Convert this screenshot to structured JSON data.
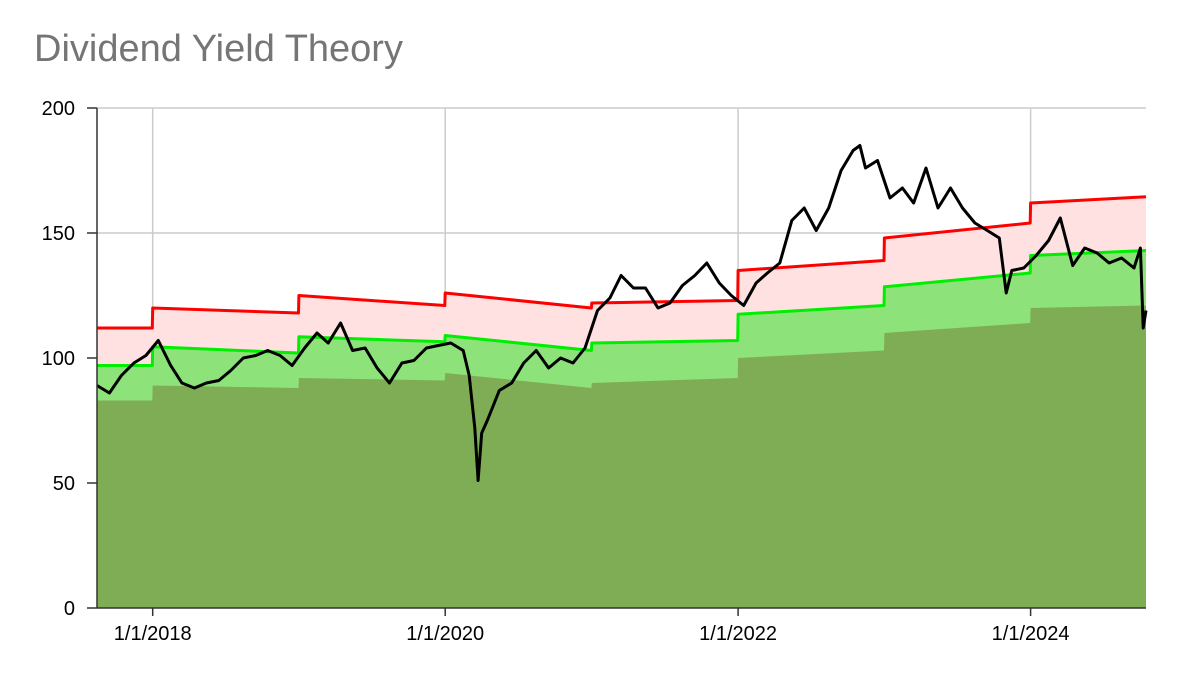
{
  "chart_data": {
    "type": "area",
    "title": "Dividend Yield Theory",
    "xlabel": "",
    "ylabel": "",
    "x_range": [
      "2017-08-15",
      "2024-10-15"
    ],
    "ylim": [
      0,
      200
    ],
    "grid": true,
    "legend": "none",
    "y_ticks": [
      "0",
      "50",
      "100",
      "150",
      "200"
    ],
    "x_ticks": [
      {
        "date": "2018-01-01",
        "label": "1/1/2018"
      },
      {
        "date": "2020-01-01",
        "label": "1/1/2020"
      },
      {
        "date": "2022-01-01",
        "label": "1/1/2022"
      },
      {
        "date": "2024-01-01",
        "label": "1/1/2024"
      }
    ],
    "colors": {
      "undervalued_line": "#ff0000",
      "undervalued_fill": "#ffe1e1",
      "fair_line": "#00ee00",
      "fair_fill": "#8ee27a",
      "overvalued_fill": "#7fad55",
      "price_line": "#000000",
      "grid": "#cccccc",
      "title": "#757575"
    },
    "series": [
      {
        "key": "overvalued",
        "x": [
          "2017-08-15",
          "2017-12-31",
          "2018-01-01",
          "2018-12-31",
          "2019-01-01",
          "2019-12-31",
          "2020-01-01",
          "2020-12-31",
          "2021-01-01",
          "2021-12-31",
          "2022-01-01",
          "2022-12-31",
          "2023-01-01",
          "2023-12-31",
          "2024-01-01",
          "2024-10-15"
        ],
        "values": [
          83,
          83,
          89,
          88,
          92,
          91,
          94,
          88,
          90,
          92,
          100,
          103,
          110,
          114,
          120,
          121
        ]
      },
      {
        "key": "fair",
        "x": [
          "2017-08-15",
          "2017-12-31",
          "2018-01-01",
          "2018-12-31",
          "2019-01-01",
          "2019-12-31",
          "2020-01-01",
          "2020-12-31",
          "2021-01-01",
          "2021-12-31",
          "2022-01-01",
          "2022-12-31",
          "2023-01-01",
          "2023-12-31",
          "2024-01-01",
          "2024-10-15"
        ],
        "values": [
          97,
          97,
          104.5,
          102,
          108.5,
          106.5,
          109,
          103,
          106,
          107,
          117.5,
          121,
          128.5,
          134,
          141,
          143
        ]
      },
      {
        "key": "undervalued",
        "x": [
          "2017-08-15",
          "2017-12-31",
          "2018-01-01",
          "2018-12-31",
          "2019-01-01",
          "2019-12-31",
          "2020-01-01",
          "2020-12-31",
          "2021-01-01",
          "2021-12-31",
          "2022-01-01",
          "2022-12-31",
          "2023-01-01",
          "2023-12-31",
          "2024-01-01",
          "2024-10-15"
        ],
        "values": [
          112,
          112,
          120,
          118,
          125,
          121,
          126,
          120,
          122,
          123,
          135,
          139,
          148,
          154,
          162,
          164.5
        ]
      },
      {
        "key": "price",
        "x": [
          "2017-08-15",
          "2017-09-15",
          "2017-10-15",
          "2017-11-15",
          "2017-12-15",
          "2018-01-15",
          "2018-02-15",
          "2018-03-15",
          "2018-04-15",
          "2018-05-15",
          "2018-06-15",
          "2018-07-15",
          "2018-08-15",
          "2018-09-15",
          "2018-10-15",
          "2018-11-15",
          "2018-12-15",
          "2019-01-15",
          "2019-02-15",
          "2019-03-15",
          "2019-04-15",
          "2019-05-15",
          "2019-06-15",
          "2019-07-15",
          "2019-08-15",
          "2019-09-15",
          "2019-10-15",
          "2019-11-15",
          "2019-12-15",
          "2020-01-15",
          "2020-02-15",
          "2020-03-01",
          "2020-03-15",
          "2020-03-23",
          "2020-04-01",
          "2020-04-15",
          "2020-05-15",
          "2020-06-15",
          "2020-07-15",
          "2020-08-15",
          "2020-09-15",
          "2020-10-15",
          "2020-11-15",
          "2020-12-15",
          "2021-01-15",
          "2021-02-15",
          "2021-03-15",
          "2021-04-15",
          "2021-05-15",
          "2021-06-15",
          "2021-07-15",
          "2021-08-15",
          "2021-09-15",
          "2021-10-15",
          "2021-11-15",
          "2021-12-15",
          "2022-01-15",
          "2022-02-15",
          "2022-03-15",
          "2022-04-15",
          "2022-05-15",
          "2022-06-15",
          "2022-07-15",
          "2022-08-15",
          "2022-09-15",
          "2022-10-15",
          "2022-11-01",
          "2022-11-15",
          "2022-12-15",
          "2023-01-15",
          "2023-02-15",
          "2023-03-15",
          "2023-04-15",
          "2023-05-15",
          "2023-06-15",
          "2023-07-15",
          "2023-08-15",
          "2023-09-15",
          "2023-10-15",
          "2023-11-01",
          "2023-11-15",
          "2023-12-15",
          "2024-01-15",
          "2024-02-15",
          "2024-03-15",
          "2024-04-15",
          "2024-05-15",
          "2024-06-15",
          "2024-07-15",
          "2024-08-15",
          "2024-09-15",
          "2024-10-01",
          "2024-10-08",
          "2024-10-15"
        ],
        "values": [
          89,
          86,
          93,
          98,
          101,
          107,
          97,
          90,
          88,
          90,
          91,
          95,
          100,
          101,
          103,
          101,
          97,
          104,
          110,
          106,
          114,
          103,
          104,
          96,
          90,
          98,
          99,
          104,
          105,
          106,
          103,
          93,
          72,
          51,
          70,
          75,
          87,
          90,
          98,
          103,
          96,
          100,
          98,
          104,
          119,
          124,
          133,
          128,
          128,
          120,
          122,
          129,
          133,
          138,
          130,
          125,
          121,
          130,
          134,
          138,
          155,
          160,
          151,
          160,
          175,
          183,
          185,
          176,
          179,
          164,
          168,
          162,
          176,
          160,
          168,
          160,
          154,
          151,
          148,
          126,
          135,
          136,
          141,
          147,
          156,
          137,
          144,
          142,
          138,
          140,
          136,
          144,
          112,
          119
        ]
      }
    ]
  }
}
